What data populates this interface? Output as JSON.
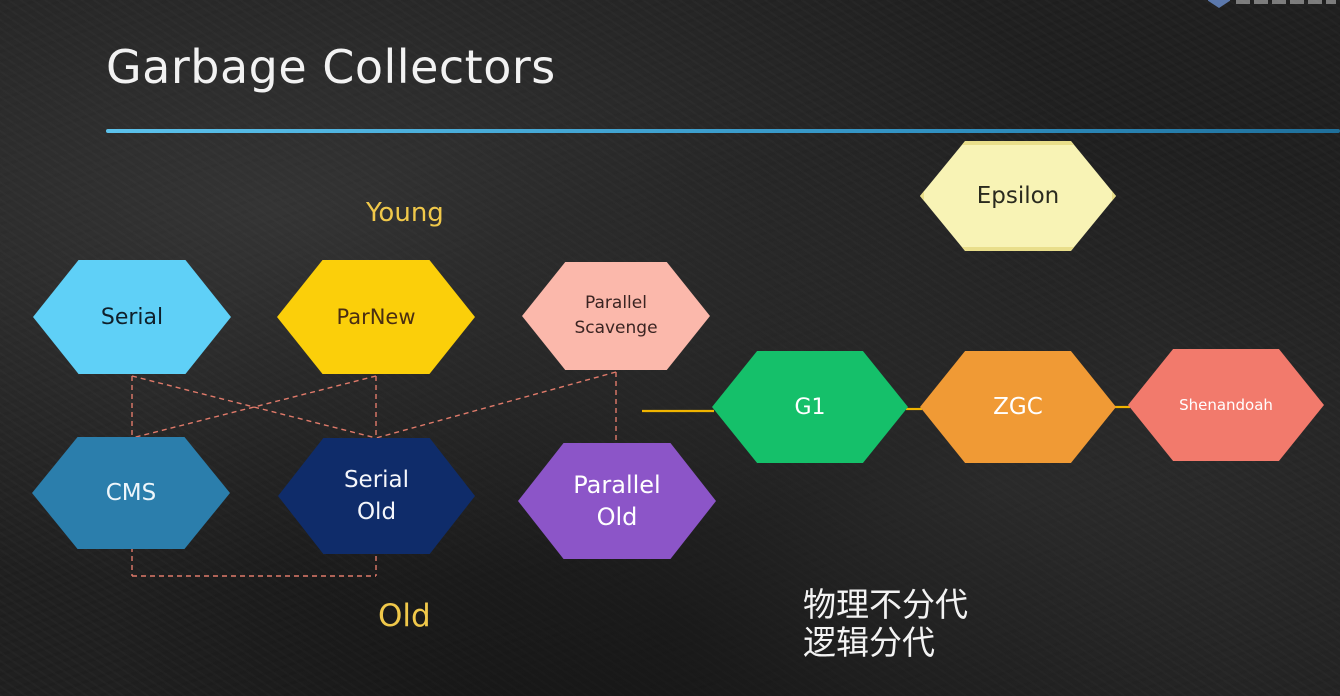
{
  "slide": {
    "title": "Garbage Collectors",
    "young_label": "Young",
    "old_label": "Old",
    "note_lines": [
      "物理不分代",
      "逻辑分代"
    ]
  },
  "collectors": {
    "serial": {
      "label": "Serial",
      "color": "#5fd0f7"
    },
    "parnew": {
      "label": "ParNew",
      "color": "#fbcf0a"
    },
    "parallel_scavenge": {
      "label_line1": "Parallel",
      "label_line2": "Scavenge",
      "color": "#fbb8ab"
    },
    "cms": {
      "label": "CMS",
      "color": "#2b7eac"
    },
    "serial_old": {
      "label_line1": "Serial",
      "label_line2": "Old",
      "color": "#0f2c6a"
    },
    "parallel_old": {
      "label_line1": "Parallel",
      "label_line2": "Old",
      "color": "#8c55c8"
    },
    "epsilon": {
      "label": "Epsilon",
      "color": "#f8f3b5"
    },
    "g1": {
      "label": "G1",
      "color": "#15c06a"
    },
    "zgc": {
      "label": "ZGC",
      "color": "#f09a35"
    },
    "shenandoah": {
      "label": "Shenandoah",
      "color": "#f27a6c"
    }
  },
  "colors": {
    "accent_rule": "#5cc2ec",
    "label_yellow": "#f0c84a",
    "dashed_link": "#e07a6a",
    "solid_link": "#f0b400"
  }
}
